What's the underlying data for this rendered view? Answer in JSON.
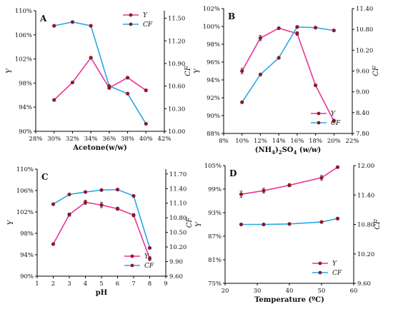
{
  "colors": {
    "Y": "#e8349a",
    "CF": "#29a8e6",
    "point": "#8b1a2b",
    "axis": "#000000"
  },
  "chart_data": [
    {
      "type": "line",
      "panel": "A",
      "xlabel": "Acetone(w/w)",
      "ylabel_left": "Y",
      "ylabel_right": "CF",
      "x_ticks": [
        "28%",
        "30%",
        "32%",
        "34%",
        "36%",
        "38%",
        "40%",
        "42%"
      ],
      "xlim": [
        28,
        42
      ],
      "y_left_ticks": [
        "90%",
        "94%",
        "98%",
        "102%",
        "106%",
        "110%"
      ],
      "ylim_left": [
        90,
        110
      ],
      "y_right_ticks": [
        "10.00",
        "10.30",
        "10.60",
        "10.90",
        "11.20",
        "11.50"
      ],
      "ylim_right": [
        10.0,
        11.6
      ],
      "legend": "top-right",
      "series": [
        {
          "name": "Y",
          "axis": "left",
          "x": [
            30,
            32,
            34,
            36,
            38,
            40
          ],
          "values": [
            95.2,
            98.1,
            102.2,
            97.2,
            98.9,
            96.8
          ],
          "err": [
            0,
            0,
            0.2,
            0.2,
            0.2,
            0.2
          ]
        },
        {
          "name": "CF",
          "axis": "right",
          "x": [
            30,
            32,
            34,
            36,
            38,
            40
          ],
          "values": [
            11.4,
            11.45,
            11.4,
            10.6,
            10.5,
            10.1
          ]
        }
      ]
    },
    {
      "type": "line",
      "panel": "B",
      "xlabel": "(NH4)2SO4 (w/w)",
      "xlabel_parts": {
        "p1": "(NH",
        "s1": "4",
        "p2": ")",
        "s2": "2",
        "p3": "SO",
        "s3": "4",
        "p4": " (",
        "it": "w/w",
        "p5": ")"
      },
      "ylabel_left": "Y",
      "ylabel_right": "CF",
      "x_ticks": [
        "8%",
        "10%",
        "12%",
        "14%",
        "16%",
        "18%",
        "20%",
        "22%"
      ],
      "xlim": [
        8,
        22
      ],
      "y_left_ticks": [
        "88%",
        "90%",
        "92%",
        "94%",
        "96%",
        "98%",
        "100%",
        "102%"
      ],
      "ylim_left": [
        88,
        102
      ],
      "y_right_ticks": [
        "7.80",
        "8.40",
        "9.00",
        "9.60",
        "10.20",
        "10.80",
        "11.40"
      ],
      "ylim_right": [
        7.8,
        11.4
      ],
      "legend": "bottom-right",
      "series": [
        {
          "name": "Y",
          "axis": "left",
          "x": [
            10,
            12,
            14,
            16,
            18,
            20
          ],
          "values": [
            95.0,
            98.7,
            99.8,
            99.2,
            93.4,
            89.4
          ],
          "err": [
            0.3,
            0.3,
            0.1,
            0.2,
            0.1,
            0.2
          ]
        },
        {
          "name": "CF",
          "axis": "right",
          "x": [
            10,
            12,
            14,
            16,
            18,
            20
          ],
          "values": [
            8.7,
            9.5,
            9.98,
            10.87,
            10.85,
            10.77
          ]
        }
      ]
    },
    {
      "type": "line",
      "panel": "C",
      "xlabel": "pH",
      "ylabel_left": "Y",
      "ylabel_right": "CF",
      "x_ticks": [
        "1",
        "2",
        "3",
        "4",
        "5",
        "6",
        "7",
        "8",
        "9"
      ],
      "xlim": [
        1,
        9
      ],
      "y_left_ticks": [
        "90%",
        "94%",
        "98%",
        "102%",
        "106%",
        "110%"
      ],
      "ylim_left": [
        90,
        110
      ],
      "y_right_ticks": [
        "9.60",
        "9.90",
        "10.20",
        "10.50",
        "10.80",
        "11.10",
        "11.40",
        "11.70"
      ],
      "ylim_right": [
        9.6,
        11.8
      ],
      "legend": "bottom-right",
      "series": [
        {
          "name": "Y",
          "axis": "left",
          "x": [
            2,
            3,
            4,
            5,
            6,
            7,
            8
          ],
          "values": [
            96.0,
            101.5,
            103.8,
            103.3,
            102.6,
            101.4,
            93.3
          ],
          "err": [
            0,
            0.3,
            0.4,
            0.5,
            0.3,
            0.3,
            0.4
          ]
        },
        {
          "name": "CF",
          "axis": "right",
          "x": [
            2,
            3,
            4,
            5,
            6,
            7,
            8
          ],
          "values": [
            11.08,
            11.28,
            11.33,
            11.37,
            11.38,
            11.25,
            10.18
          ]
        }
      ]
    },
    {
      "type": "line",
      "panel": "D",
      "xlabel": "Temperature (ºC)",
      "ylabel_left": "Y",
      "ylabel_right": "CF",
      "x_ticks": [
        "20",
        "30",
        "40",
        "50",
        "60"
      ],
      "xlim": [
        20,
        60
      ],
      "y_left_ticks": [
        "75%",
        "81%",
        "87%",
        "93%",
        "99%",
        "105%"
      ],
      "ylim_left": [
        75,
        105
      ],
      "y_right_ticks": [
        "9.60",
        "10.20",
        "10.80",
        "11.40",
        "12.00"
      ],
      "ylim_right": [
        9.6,
        12.0
      ],
      "legend": "bottom-right",
      "series": [
        {
          "name": "Y",
          "axis": "left",
          "x": [
            25,
            32,
            40,
            50,
            55
          ],
          "values": [
            97.7,
            98.6,
            100.0,
            101.9,
            104.6
          ],
          "err": [
            0.8,
            0.6,
            0.4,
            0.6,
            0.2
          ]
        },
        {
          "name": "CF",
          "axis": "right",
          "x": [
            25,
            32,
            40,
            50,
            55
          ],
          "values": [
            10.8,
            10.8,
            10.81,
            10.85,
            10.92
          ]
        }
      ]
    }
  ]
}
